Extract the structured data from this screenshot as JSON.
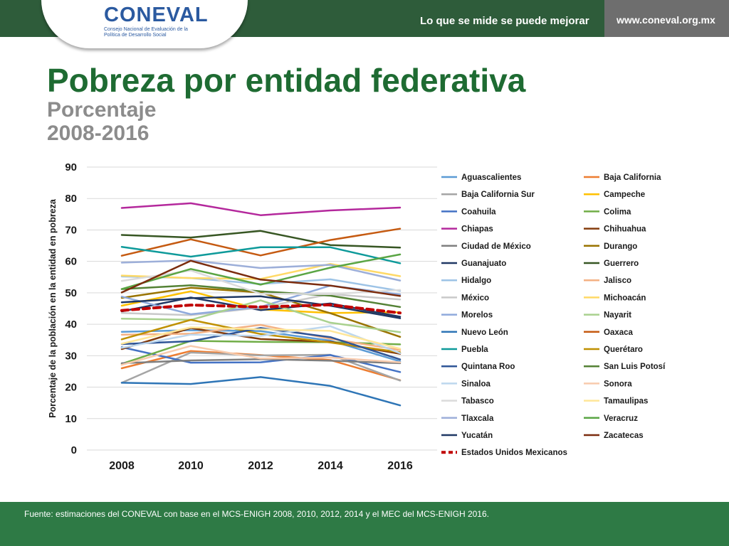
{
  "header": {
    "logo_text": "CONEVAL",
    "logo_subtext": "Consejo Nacional de Evaluación de la Política de Desarrollo Social",
    "slogan": "Lo que se mide se puede mejorar",
    "url": "www.coneval.org.mx",
    "colors": {
      "bar": "#2e5c3a",
      "url_box": "#6e6e6e",
      "logo": "#2b5aa0"
    }
  },
  "title": "Pobreza por entidad federativa",
  "subtitle_line1": "Porcentaje",
  "subtitle_line2": "2008-2016",
  "footer": {
    "source": "Fuente: estimaciones del CONEVAL con base en el MCS-ENIGH 2008, 2010, 2012, 2014 y el MEC del MCS-ENIGH 2016.",
    "color": "#2e7a45"
  },
  "chart_data": {
    "type": "line",
    "title": "",
    "xlabel": "",
    "ylabel": "Porcentaje de la población en la entidad en pobreza",
    "x": [
      "2008",
      "2010",
      "2012",
      "2014",
      "2016"
    ],
    "ylim": [
      0,
      90
    ],
    "yticks": [
      0,
      10,
      20,
      30,
      40,
      50,
      60,
      70,
      80,
      90
    ],
    "grid": true,
    "legend_position": "right",
    "series": [
      {
        "name": "Aguascalientes",
        "color": "#5b9bd5",
        "values": [
          37.6,
          38.1,
          37.8,
          34.8,
          28.2
        ]
      },
      {
        "name": "Baja California",
        "color": "#ed7d31",
        "values": [
          26.0,
          31.5,
          30.2,
          28.6,
          22.2
        ]
      },
      {
        "name": "Baja California Sur",
        "color": "#a5a5a5",
        "values": [
          21.4,
          31.0,
          30.1,
          30.3,
          22.1
        ]
      },
      {
        "name": "Campeche",
        "color": "#ffc000",
        "values": [
          45.9,
          50.5,
          44.7,
          43.6,
          43.8
        ]
      },
      {
        "name": "Coahuila",
        "color": "#4472c4",
        "values": [
          32.7,
          27.8,
          27.9,
          30.2,
          24.8
        ]
      },
      {
        "name": "Colima",
        "color": "#70ad47",
        "values": [
          27.4,
          34.7,
          34.4,
          34.3,
          33.6
        ]
      },
      {
        "name": "Chiapas",
        "color": "#b4289c",
        "values": [
          77.0,
          78.5,
          74.7,
          76.2,
          77.1
        ]
      },
      {
        "name": "Chihuahua",
        "color": "#843c0c",
        "values": [
          32.1,
          38.8,
          35.3,
          34.4,
          30.6
        ]
      },
      {
        "name": "Ciudad de México",
        "color": "#7f7f7f",
        "values": [
          27.6,
          28.5,
          28.9,
          28.4,
          27.6
        ]
      },
      {
        "name": "Durango",
        "color": "#997300",
        "values": [
          48.4,
          51.6,
          50.1,
          43.5,
          36.0
        ]
      },
      {
        "name": "Guanajuato",
        "color": "#203864",
        "values": [
          44.1,
          48.5,
          44.5,
          46.6,
          42.4
        ]
      },
      {
        "name": "Guerrero",
        "color": "#375623",
        "values": [
          68.4,
          67.6,
          69.7,
          65.2,
          64.4
        ]
      },
      {
        "name": "Hidalgo",
        "color": "#9dc3e6",
        "values": [
          55.2,
          54.7,
          52.8,
          54.3,
          50.6
        ]
      },
      {
        "name": "Jalisco",
        "color": "#f4b183",
        "values": [
          36.7,
          37.0,
          39.8,
          35.4,
          31.8
        ]
      },
      {
        "name": "México",
        "color": "#c9c9c9",
        "values": [
          43.6,
          42.9,
          45.3,
          49.6,
          47.9
        ]
      },
      {
        "name": "Michoacán",
        "color": "#ffd966",
        "values": [
          55.5,
          54.7,
          54.4,
          59.2,
          55.3
        ]
      },
      {
        "name": "Morelos",
        "color": "#8faadc",
        "values": [
          48.8,
          43.2,
          45.5,
          52.3,
          49.5
        ]
      },
      {
        "name": "Nayarit",
        "color": "#a9d18e",
        "values": [
          41.8,
          41.4,
          47.6,
          40.5,
          37.5
        ]
      },
      {
        "name": "Nuevo León",
        "color": "#2e75b6",
        "values": [
          21.4,
          21.0,
          23.2,
          20.4,
          14.2
        ]
      },
      {
        "name": "Oaxaca",
        "color": "#c55a11",
        "values": [
          61.8,
          67.0,
          61.9,
          66.8,
          70.4
        ]
      },
      {
        "name": "Puebla",
        "color": "#0e9a9a",
        "values": [
          64.6,
          61.5,
          64.5,
          64.5,
          59.4
        ]
      },
      {
        "name": "Querétaro",
        "color": "#bf9000",
        "values": [
          35.2,
          41.4,
          36.9,
          34.2,
          31.1
        ]
      },
      {
        "name": "Quintana Roo",
        "color": "#2f5597",
        "values": [
          33.7,
          34.6,
          38.8,
          35.9,
          28.8
        ]
      },
      {
        "name": "San Luis Potosí",
        "color": "#548235",
        "values": [
          51.2,
          52.4,
          50.5,
          49.1,
          45.5
        ]
      },
      {
        "name": "Sinaloa",
        "color": "#bdd7ee",
        "values": [
          32.5,
          36.7,
          36.3,
          39.4,
          30.8
        ]
      },
      {
        "name": "Sonora",
        "color": "#f8cbad",
        "values": [
          27.1,
          33.1,
          29.1,
          29.4,
          27.9
        ]
      },
      {
        "name": "Tabasco",
        "color": "#dbdbdb",
        "values": [
          53.8,
          57.1,
          49.7,
          49.6,
          50.9
        ]
      },
      {
        "name": "Tamaulipas",
        "color": "#ffe699",
        "values": [
          33.8,
          39.0,
          38.4,
          37.9,
          32.2
        ]
      },
      {
        "name": "Tlaxcala",
        "color": "#9dafd9",
        "values": [
          59.6,
          60.3,
          57.9,
          58.9,
          53.9
        ]
      },
      {
        "name": "Veracruz",
        "color": "#5aa544",
        "values": [
          51.2,
          57.6,
          52.6,
          58.0,
          62.2
        ]
      },
      {
        "name": "Yucatán",
        "color": "#1f3864",
        "values": [
          47.0,
          48.3,
          48.9,
          45.9,
          41.9
        ]
      },
      {
        "name": "Zacatecas",
        "color": "#7b2c0e",
        "values": [
          50.1,
          60.2,
          54.2,
          52.3,
          49.0
        ]
      },
      {
        "name": "Estados Unidos Mexicanos",
        "color": "#c00000",
        "dashed": true,
        "values": [
          44.4,
          46.1,
          45.5,
          46.2,
          43.6
        ]
      }
    ]
  }
}
